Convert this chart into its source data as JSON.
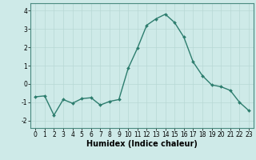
{
  "x": [
    0,
    1,
    2,
    3,
    4,
    5,
    6,
    7,
    8,
    9,
    10,
    11,
    12,
    13,
    14,
    15,
    16,
    17,
    18,
    19,
    20,
    21,
    22,
    23
  ],
  "y": [
    -0.7,
    -0.65,
    -1.7,
    -0.85,
    -1.05,
    -0.8,
    -0.75,
    -1.15,
    -0.95,
    -0.85,
    0.85,
    1.95,
    3.2,
    3.55,
    3.8,
    3.35,
    2.55,
    1.2,
    0.45,
    -0.05,
    -0.15,
    -0.35,
    -1.0,
    -1.45
  ],
  "line_color": "#2d7d6e",
  "marker": "D",
  "marker_size": 2.0,
  "linewidth": 1.0,
  "xlabel": "Humidex (Indice chaleur)",
  "xlim": [
    -0.5,
    23.5
  ],
  "ylim": [
    -2.4,
    4.4
  ],
  "yticks": [
    -2,
    -1,
    0,
    1,
    2,
    3,
    4
  ],
  "xticks": [
    0,
    1,
    2,
    3,
    4,
    5,
    6,
    7,
    8,
    9,
    10,
    11,
    12,
    13,
    14,
    15,
    16,
    17,
    18,
    19,
    20,
    21,
    22,
    23
  ],
  "bg_color": "#ceeae8",
  "grid_color": "#b8d8d5",
  "tick_fontsize": 5.5,
  "xlabel_fontsize": 7.0
}
